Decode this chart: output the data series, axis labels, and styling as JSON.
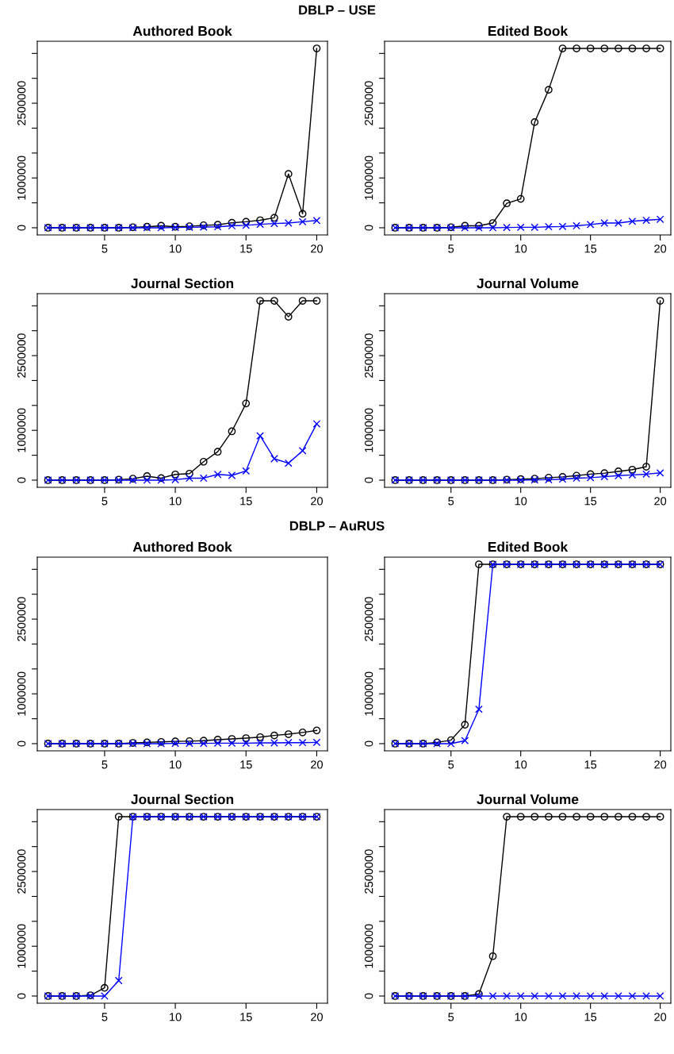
{
  "chart_data": [
    {
      "type": "other",
      "title": "DBLP – USE"
    },
    {
      "type": "line",
      "title": "Authored Book",
      "x": [
        1,
        2,
        3,
        4,
        5,
        6,
        7,
        8,
        9,
        10,
        11,
        12,
        13,
        14,
        15,
        16,
        17,
        18,
        19,
        20
      ],
      "xlim": [
        0.24,
        20.76
      ],
      "xticks": [
        5,
        10,
        15,
        20
      ],
      "ylim": [
        -144000,
        3744000
      ],
      "yticks": [
        0,
        {
          "value": 500000,
          "label": null
        },
        1000000,
        {
          "value": 1500000,
          "label": null
        },
        {
          "value": 2000000,
          "label": null
        },
        2500000,
        {
          "value": 3000000,
          "label": null
        },
        {
          "value": 3500000,
          "label": null
        }
      ],
      "grid": false,
      "legend": false,
      "series": [
        {
          "color": "#000000",
          "marker": "circle",
          "values": [
            0,
            0,
            0,
            0,
            0,
            0,
            10000,
            20000,
            40000,
            20000,
            30000,
            50000,
            60000,
            100000,
            120000,
            150000,
            200000,
            1080000,
            280000,
            3600000
          ]
        },
        {
          "color": "#0000ff",
          "marker": "cross",
          "values": [
            0,
            0,
            0,
            0,
            0,
            0,
            0,
            0,
            0,
            5000,
            10000,
            15000,
            20000,
            40000,
            50000,
            70000,
            85000,
            95000,
            120000,
            145000
          ]
        }
      ]
    },
    {
      "type": "line",
      "title": "Edited Book",
      "x": [
        1,
        2,
        3,
        4,
        5,
        6,
        7,
        8,
        9,
        10,
        11,
        12,
        13,
        14,
        15,
        16,
        17,
        18,
        19,
        20
      ],
      "xlim": [
        0.24,
        20.76
      ],
      "xticks": [
        5,
        10,
        15,
        20
      ],
      "ylim": [
        -144000,
        3744000
      ],
      "yticks": [
        0,
        {
          "value": 500000,
          "label": null
        },
        1000000,
        {
          "value": 1500000,
          "label": null
        },
        {
          "value": 2000000,
          "label": null
        },
        2500000,
        {
          "value": 3000000,
          "label": null
        },
        {
          "value": 3500000,
          "label": null
        }
      ],
      "grid": false,
      "legend": false,
      "series": [
        {
          "color": "#000000",
          "marker": "circle",
          "values": [
            0,
            0,
            0,
            0,
            10000,
            40000,
            40000,
            95000,
            490000,
            580000,
            2120000,
            2770000,
            3600000,
            3600000,
            3600000,
            3600000,
            3600000,
            3600000,
            3600000,
            3600000
          ]
        },
        {
          "color": "#0000ff",
          "marker": "cross",
          "values": [
            0,
            0,
            0,
            0,
            0,
            0,
            0,
            0,
            5000,
            10000,
            10000,
            20000,
            25000,
            40000,
            65000,
            95000,
            95000,
            130000,
            150000,
            170000
          ]
        }
      ]
    },
    {
      "type": "line",
      "title": "Journal Section",
      "x": [
        1,
        2,
        3,
        4,
        5,
        6,
        7,
        8,
        9,
        10,
        11,
        12,
        13,
        14,
        15,
        16,
        17,
        18,
        19,
        20
      ],
      "xlim": [
        0.24,
        20.76
      ],
      "xticks": [
        5,
        10,
        15,
        20
      ],
      "ylim": [
        -144000,
        3744000
      ],
      "yticks": [
        0,
        {
          "value": 500000,
          "label": null
        },
        1000000,
        {
          "value": 1500000,
          "label": null
        },
        {
          "value": 2000000,
          "label": null
        },
        2500000,
        {
          "value": 3000000,
          "label": null
        },
        {
          "value": 3500000,
          "label": null
        }
      ],
      "grid": false,
      "legend": false,
      "series": [
        {
          "color": "#000000",
          "marker": "circle",
          "values": [
            0,
            0,
            0,
            0,
            0,
            10000,
            30000,
            80000,
            40000,
            115000,
            130000,
            370000,
            570000,
            980000,
            1540000,
            3600000,
            3600000,
            3280000,
            3600000,
            3600000
          ]
        },
        {
          "color": "#0000ff",
          "marker": "cross",
          "values": [
            0,
            0,
            0,
            0,
            0,
            0,
            0,
            0,
            0,
            10000,
            40000,
            40000,
            115000,
            95000,
            185000,
            890000,
            430000,
            340000,
            590000,
            1130000
          ]
        }
      ]
    },
    {
      "type": "line",
      "title": "Journal Volume",
      "x": [
        1,
        2,
        3,
        4,
        5,
        6,
        7,
        8,
        9,
        10,
        11,
        12,
        13,
        14,
        15,
        16,
        17,
        18,
        19,
        20
      ],
      "xlim": [
        0.24,
        20.76
      ],
      "xticks": [
        5,
        10,
        15,
        20
      ],
      "ylim": [
        -144000,
        3744000
      ],
      "yticks": [
        0,
        {
          "value": 500000,
          "label": null
        },
        1000000,
        {
          "value": 1500000,
          "label": null
        },
        {
          "value": 2000000,
          "label": null
        },
        2500000,
        {
          "value": 3000000,
          "label": null
        },
        {
          "value": 3500000,
          "label": null
        }
      ],
      "grid": false,
      "legend": false,
      "series": [
        {
          "color": "#000000",
          "marker": "circle",
          "values": [
            0,
            0,
            0,
            0,
            0,
            0,
            0,
            0,
            10000,
            20000,
            30000,
            50000,
            65000,
            90000,
            120000,
            140000,
            175000,
            210000,
            270000,
            3600000
          ]
        },
        {
          "color": "#0000ff",
          "marker": "cross",
          "values": [
            0,
            0,
            0,
            0,
            0,
            0,
            0,
            0,
            0,
            0,
            5000,
            10000,
            20000,
            40000,
            50000,
            70000,
            90000,
            105000,
            120000,
            145000
          ]
        }
      ]
    },
    {
      "type": "other",
      "title": "DBLP – AuRUS"
    },
    {
      "type": "line",
      "title": "Authored Book",
      "x": [
        1,
        2,
        3,
        4,
        5,
        6,
        7,
        8,
        9,
        10,
        11,
        12,
        13,
        14,
        15,
        16,
        17,
        18,
        19,
        20
      ],
      "xlim": [
        0.24,
        20.76
      ],
      "xticks": [
        5,
        10,
        15,
        20
      ],
      "ylim": [
        -144000,
        3744000
      ],
      "yticks": [
        0,
        {
          "value": 500000,
          "label": null
        },
        1000000,
        {
          "value": 1500000,
          "label": null
        },
        {
          "value": 2000000,
          "label": null
        },
        2500000,
        {
          "value": 3000000,
          "label": null
        },
        {
          "value": 3500000,
          "label": null
        }
      ],
      "grid": false,
      "legend": false,
      "series": [
        {
          "color": "#000000",
          "marker": "circle",
          "values": [
            0,
            0,
            0,
            0,
            0,
            0,
            15000,
            25000,
            35000,
            45000,
            50000,
            60000,
            80000,
            95000,
            110000,
            130000,
            165000,
            190000,
            225000,
            265000
          ]
        },
        {
          "color": "#0000ff",
          "marker": "cross",
          "values": [
            0,
            0,
            0,
            0,
            0,
            0,
            0,
            0,
            0,
            5000,
            5000,
            5000,
            10000,
            10000,
            10000,
            15000,
            15000,
            20000,
            20000,
            25000
          ]
        }
      ]
    },
    {
      "type": "line",
      "title": "Edited Book",
      "x": [
        1,
        2,
        3,
        4,
        5,
        6,
        7,
        8,
        9,
        10,
        11,
        12,
        13,
        14,
        15,
        16,
        17,
        18,
        19,
        20
      ],
      "xlim": [
        0.24,
        20.76
      ],
      "xticks": [
        5,
        10,
        15,
        20
      ],
      "ylim": [
        -144000,
        3744000
      ],
      "yticks": [
        0,
        {
          "value": 500000,
          "label": null
        },
        1000000,
        {
          "value": 1500000,
          "label": null
        },
        {
          "value": 2000000,
          "label": null
        },
        2500000,
        {
          "value": 3000000,
          "label": null
        },
        {
          "value": 3500000,
          "label": null
        }
      ],
      "grid": false,
      "legend": false,
      "series": [
        {
          "color": "#000000",
          "marker": "circle",
          "values": [
            0,
            0,
            0,
            25000,
            70000,
            380000,
            3600000,
            3600000,
            3600000,
            3600000,
            3600000,
            3600000,
            3600000,
            3600000,
            3600000,
            3600000,
            3600000,
            3600000,
            3600000,
            3600000
          ]
        },
        {
          "color": "#0000ff",
          "marker": "cross",
          "values": [
            0,
            0,
            0,
            0,
            0,
            60000,
            690000,
            3600000,
            3600000,
            3600000,
            3600000,
            3600000,
            3600000,
            3600000,
            3600000,
            3600000,
            3600000,
            3600000,
            3600000,
            3600000
          ]
        }
      ]
    },
    {
      "type": "line",
      "title": "Journal Section",
      "x": [
        1,
        2,
        3,
        4,
        5,
        6,
        7,
        8,
        9,
        10,
        11,
        12,
        13,
        14,
        15,
        16,
        17,
        18,
        19,
        20
      ],
      "xlim": [
        0.24,
        20.76
      ],
      "xticks": [
        5,
        10,
        15,
        20
      ],
      "ylim": [
        -144000,
        3744000
      ],
      "yticks": [
        0,
        {
          "value": 500000,
          "label": null
        },
        1000000,
        {
          "value": 1500000,
          "label": null
        },
        {
          "value": 2000000,
          "label": null
        },
        2500000,
        {
          "value": 3000000,
          "label": null
        },
        {
          "value": 3500000,
          "label": null
        }
      ],
      "grid": false,
      "legend": false,
      "series": [
        {
          "color": "#000000",
          "marker": "circle",
          "values": [
            0,
            0,
            0,
            15000,
            165000,
            3600000,
            3600000,
            3600000,
            3600000,
            3600000,
            3600000,
            3600000,
            3600000,
            3600000,
            3600000,
            3600000,
            3600000,
            3600000,
            3600000,
            3600000
          ]
        },
        {
          "color": "#0000ff",
          "marker": "cross",
          "values": [
            0,
            0,
            0,
            0,
            0,
            310000,
            3600000,
            3600000,
            3600000,
            3600000,
            3600000,
            3600000,
            3600000,
            3600000,
            3600000,
            3600000,
            3600000,
            3600000,
            3600000,
            3600000
          ]
        }
      ]
    },
    {
      "type": "line",
      "title": "Journal Volume",
      "x": [
        1,
        2,
        3,
        4,
        5,
        6,
        7,
        8,
        9,
        10,
        11,
        12,
        13,
        14,
        15,
        16,
        17,
        18,
        19,
        20
      ],
      "xlim": [
        0.24,
        20.76
      ],
      "xticks": [
        5,
        10,
        15,
        20
      ],
      "ylim": [
        -144000,
        3744000
      ],
      "yticks": [
        0,
        {
          "value": 500000,
          "label": null
        },
        1000000,
        {
          "value": 1500000,
          "label": null
        },
        {
          "value": 2000000,
          "label": null
        },
        2500000,
        {
          "value": 3000000,
          "label": null
        },
        {
          "value": 3500000,
          "label": null
        }
      ],
      "grid": false,
      "legend": false,
      "series": [
        {
          "color": "#000000",
          "marker": "circle",
          "values": [
            0,
            0,
            0,
            0,
            0,
            0,
            40000,
            800000,
            3600000,
            3600000,
            3600000,
            3600000,
            3600000,
            3600000,
            3600000,
            3600000,
            3600000,
            3600000,
            3600000,
            3600000
          ]
        },
        {
          "color": "#0000ff",
          "marker": "cross",
          "values": [
            0,
            0,
            0,
            0,
            0,
            0,
            0,
            0,
            0,
            0,
            0,
            0,
            0,
            0,
            0,
            0,
            0,
            0,
            0,
            0
          ]
        }
      ]
    }
  ]
}
